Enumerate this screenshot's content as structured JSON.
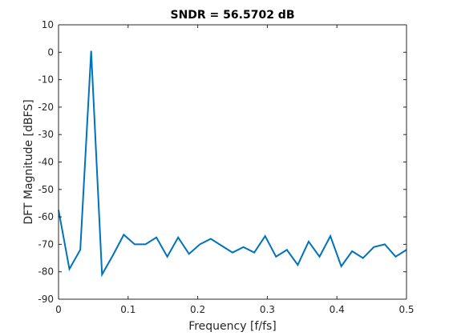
{
  "chart_data": {
    "type": "line",
    "title": "SNDR = 56.5702 dB",
    "xlabel": "Frequency [f/fs]",
    "ylabel": "DFT Magnitude [dBFS]",
    "xlim": [
      0,
      0.5
    ],
    "ylim": [
      -90,
      10
    ],
    "x_ticks": [
      0,
      0.1,
      0.2,
      0.3,
      0.4,
      0.5
    ],
    "x_tick_labels": [
      "0",
      "0.1",
      "0.2",
      "0.3",
      "0.4",
      "0.5"
    ],
    "y_ticks": [
      10,
      0,
      -10,
      -20,
      -30,
      -40,
      -50,
      -60,
      -70,
      -80,
      -90
    ],
    "y_tick_labels": [
      "10",
      "0",
      "-10",
      "-20",
      "-30",
      "-40",
      "-50",
      "-60",
      "-70",
      "-80",
      "-90"
    ],
    "grid": false,
    "colors": {
      "line": "#0072BD",
      "axes": "#262626",
      "background": "#ffffff"
    },
    "series": [
      {
        "x": [
          0,
          0.015625,
          0.03125,
          0.046875,
          0.0625,
          0.078125,
          0.09375,
          0.109375,
          0.125,
          0.140625,
          0.15625,
          0.171875,
          0.1875,
          0.203125,
          0.21875,
          0.234375,
          0.25,
          0.265625,
          0.28125,
          0.296875,
          0.3125,
          0.328125,
          0.34375,
          0.359375,
          0.375,
          0.390625,
          0.40625,
          0.421875,
          0.4375,
          0.453125,
          0.46875,
          0.484375,
          0.5
        ],
        "values": [
          -57.5,
          -79,
          -72,
          0.5,
          -81,
          -74,
          -66.5,
          -70,
          -70,
          -67.5,
          -74.5,
          -67.5,
          -73.5,
          -70,
          -68,
          -70.5,
          -73,
          -71,
          -73,
          -67,
          -74.5,
          -72,
          -77.5,
          -69,
          -74.5,
          -67,
          -78,
          -72.5,
          -75,
          -71,
          -70,
          -74.5,
          -72
        ]
      }
    ]
  }
}
